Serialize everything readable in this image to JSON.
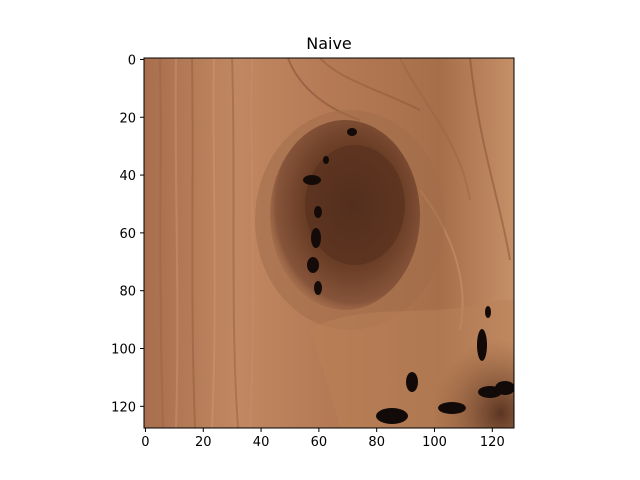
{
  "chart_data": {
    "type": "image",
    "title": "Naive",
    "xlabel": "",
    "ylabel": "",
    "image_size": [
      128,
      128
    ],
    "xlim": [
      0,
      128
    ],
    "ylim": [
      128,
      0
    ],
    "y_inverted": true,
    "xticks": [
      0,
      20,
      40,
      60,
      80,
      100,
      120
    ],
    "yticks": [
      0,
      20,
      40,
      60,
      80,
      100,
      120
    ],
    "image_description_key": "wood-grain-texture-with-knot",
    "colors": {
      "wood_base": "#b27552",
      "wood_light": "#c48a62",
      "wood_dark": "#6d4028",
      "knot_dark": "#4a2a1a",
      "crack": "#120a08",
      "axes": "#000000",
      "background": "#ffffff"
    }
  }
}
